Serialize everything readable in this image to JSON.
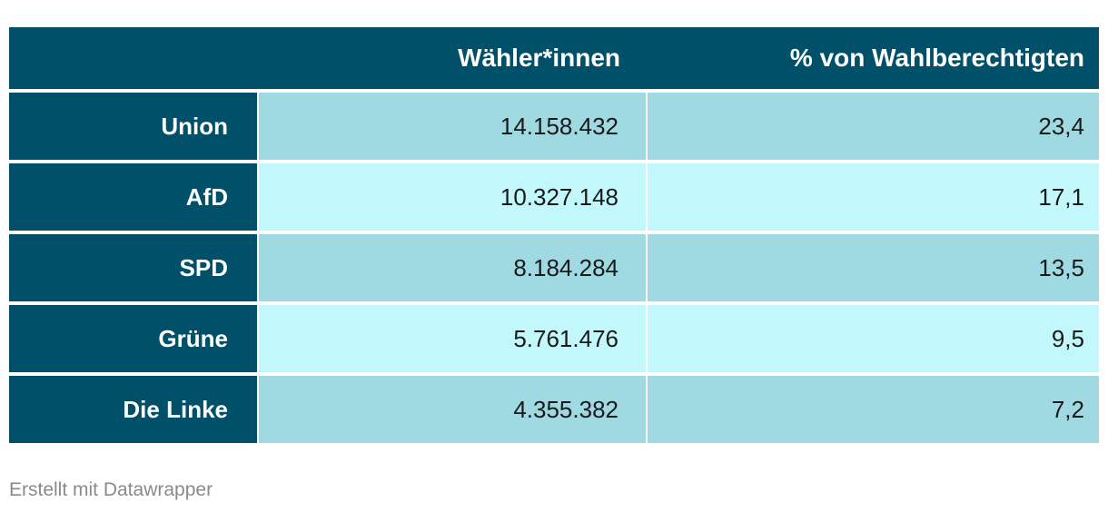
{
  "colors": {
    "header_bg": "#00506a",
    "label_bg": "#00506a",
    "row_odd_bg": "#9fd9e2",
    "row_even_bg": "#c2f8fc"
  },
  "table": {
    "headers": [
      "",
      "Wähler*innen",
      "% von Wahlberechtigten"
    ]
  },
  "chart_data": {
    "type": "table",
    "columns": [
      "",
      "Wähler*innen",
      "% von Wahlberechtigten"
    ],
    "rows": [
      [
        "Union",
        "14.158.432",
        "23,4"
      ],
      [
        "AfD",
        "10.327.148",
        "17,1"
      ],
      [
        "SPD",
        "8.184.284",
        "13,5"
      ],
      [
        "Grüne",
        "5.761.476",
        "9,5"
      ],
      [
        "Die Linke",
        "4.355.382",
        "7,2"
      ]
    ]
  },
  "footer": "Erstellt mit Datawrapper"
}
